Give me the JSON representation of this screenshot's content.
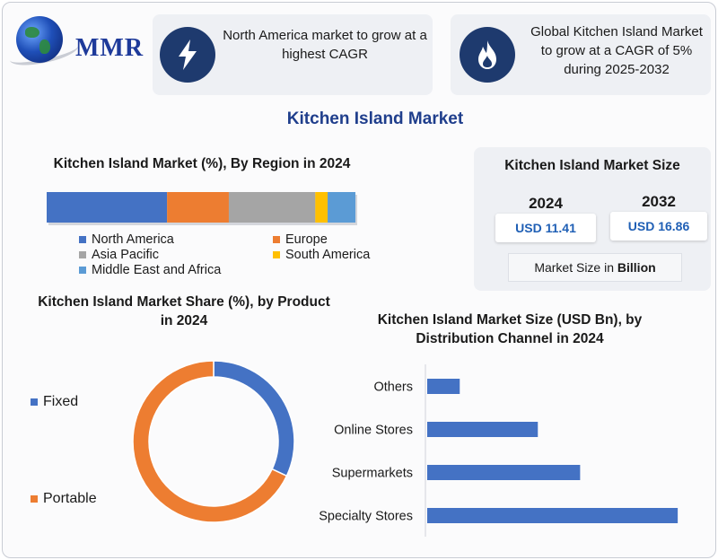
{
  "brand": {
    "logo_text": "MMR"
  },
  "cards": [
    {
      "text": "North America market to grow at a highest CAGR",
      "icon": "lightning-icon"
    },
    {
      "text": "Global Kitchen Island Market to grow at a CAGR of 5% during 2025-2032",
      "icon": "flame-icon"
    }
  ],
  "title": "Kitchen Island Market",
  "market_size": {
    "title": "Kitchen Island Market Size",
    "year1": "2024",
    "value1": "USD 11.41",
    "year2": "2032",
    "value2": "USD 16.86",
    "unit_prefix": "Market Size in ",
    "unit_bold": "Billion"
  },
  "colors": {
    "blue": "#4472C4",
    "orange": "#ED7D31",
    "gray": "#A5A5A5",
    "yellow": "#FFC000",
    "lightblue": "#5B9BD5"
  },
  "chart_data": [
    {
      "type": "bar",
      "title": "Kitchen Island Market (%), By Region in 2024",
      "orientation": "horizontal-stacked",
      "categories": [
        "North America",
        "Europe",
        "Asia Pacific",
        "South America",
        "Middle East and Africa"
      ],
      "values": [
        39,
        20,
        28,
        4,
        9
      ],
      "colors": [
        "#4472C4",
        "#ED7D31",
        "#A5A5A5",
        "#FFC000",
        "#5B9BD5"
      ],
      "legend": "bottom"
    },
    {
      "type": "pie",
      "style": "donut",
      "title": "Kitchen Island Market Share (%), by Product in 2024",
      "categories": [
        "Fixed",
        "Portable"
      ],
      "values": [
        32,
        68
      ],
      "colors": [
        "#4472C4",
        "#ED7D31"
      ],
      "legend": "left"
    },
    {
      "type": "bar",
      "orientation": "horizontal",
      "title": "Kitchen Island Market Size (USD Bn), by Distribution Channel in 2024",
      "categories": [
        "Others",
        "Online Stores",
        "Supermarkets",
        "Specialty Stores"
      ],
      "values": [
        0.5,
        1.7,
        2.35,
        3.85
      ],
      "xlim": [
        0,
        4
      ],
      "colors": [
        "#4472C4"
      ]
    }
  ]
}
